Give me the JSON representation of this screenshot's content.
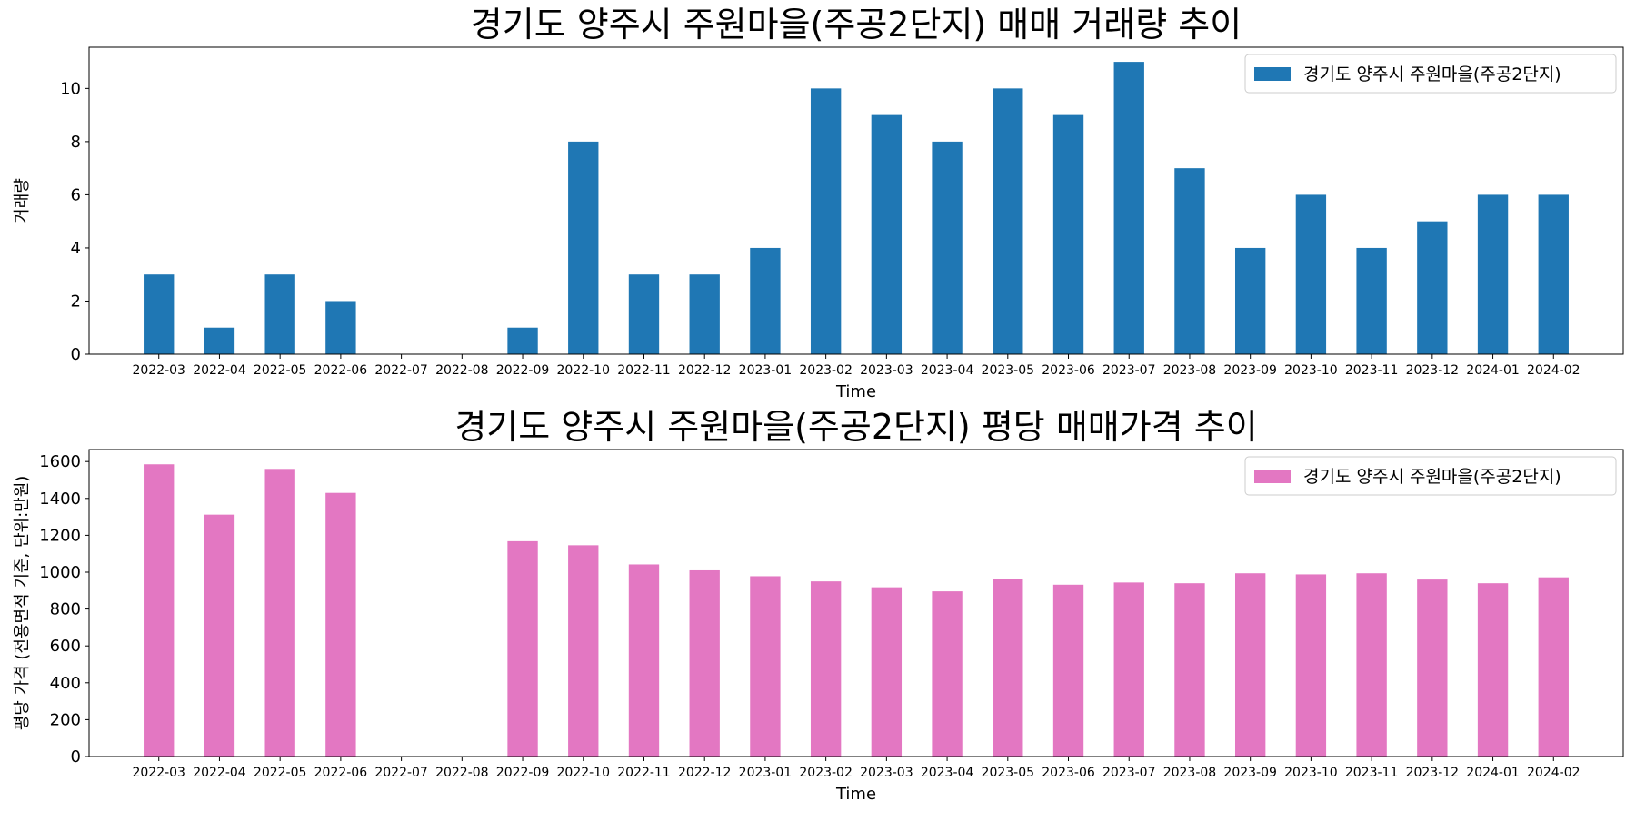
{
  "chart_data": [
    {
      "type": "bar",
      "title": "경기도 양주시 주원마을(주공2단지) 매매 거래량 추이",
      "xlabel": "Time",
      "ylabel": "거래량",
      "categories": [
        "2022-03",
        "2022-04",
        "2022-05",
        "2022-06",
        "2022-07",
        "2022-08",
        "2022-09",
        "2022-10",
        "2022-11",
        "2022-12",
        "2023-01",
        "2023-02",
        "2023-03",
        "2023-04",
        "2023-05",
        "2023-06",
        "2023-07",
        "2023-08",
        "2023-09",
        "2023-10",
        "2023-11",
        "2023-12",
        "2024-01",
        "2024-02"
      ],
      "series": [
        {
          "name": "경기도 양주시 주원마을(주공2단지)",
          "values": [
            3,
            1,
            3,
            2,
            0,
            0,
            1,
            8,
            3,
            3,
            4,
            10,
            9,
            8,
            10,
            9,
            11,
            7,
            4,
            6,
            4,
            5,
            6,
            6
          ]
        }
      ],
      "ylim": [
        0,
        11.55
      ],
      "yticks": [
        0,
        2,
        4,
        6,
        8,
        10
      ],
      "color": "#1f77b4",
      "legend": "top-right",
      "grid": false
    },
    {
      "type": "bar",
      "title": "경기도 양주시 주원마을(주공2단지) 평당 매매가격 추이",
      "xlabel": "Time",
      "ylabel": "평당 가격 (전용면적 기준, 단위:만원)",
      "categories": [
        "2022-03",
        "2022-04",
        "2022-05",
        "2022-06",
        "2022-07",
        "2022-08",
        "2022-09",
        "2022-10",
        "2022-11",
        "2022-12",
        "2023-01",
        "2023-02",
        "2023-03",
        "2023-04",
        "2023-05",
        "2023-06",
        "2023-07",
        "2023-08",
        "2023-09",
        "2023-10",
        "2023-11",
        "2023-12",
        "2024-01",
        "2024-02"
      ],
      "series": [
        {
          "name": "경기도 양주시 주원마을(주공2단지)",
          "values": [
            1585,
            1312,
            1560,
            1430,
            0,
            0,
            1168,
            1146,
            1042,
            1010,
            978,
            950,
            918,
            896,
            962,
            932,
            944,
            940,
            994,
            988,
            994,
            960,
            940,
            972
          ]
        }
      ],
      "ylim": [
        0,
        1665
      ],
      "yticks": [
        0,
        200,
        400,
        600,
        800,
        1000,
        1200,
        1400,
        1600
      ],
      "color": "#e377c2",
      "legend": "top-right",
      "grid": false
    }
  ]
}
